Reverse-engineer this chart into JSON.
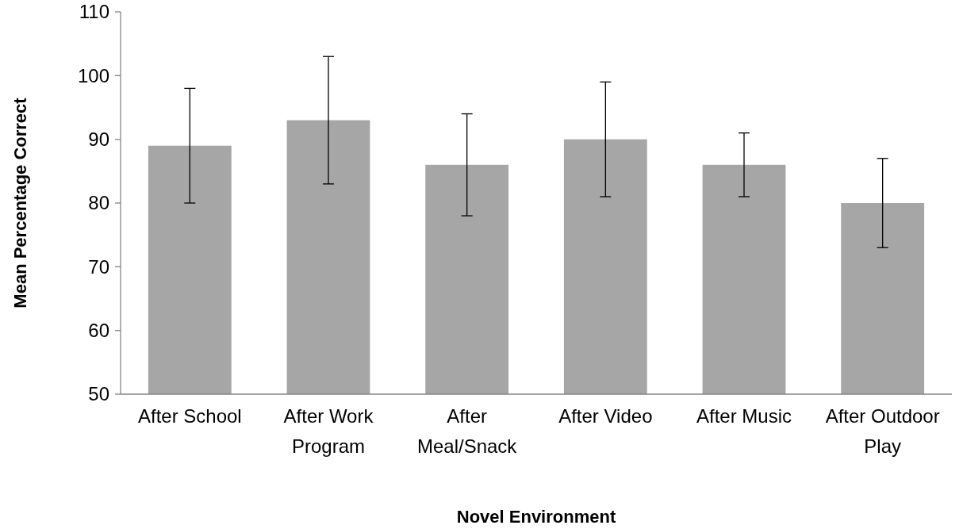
{
  "chart_data": {
    "type": "bar",
    "xlabel": "Novel Environment",
    "ylabel": "Mean Percentage Correct",
    "categories": [
      "After School",
      "After Work Program",
      "After Meal/Snack",
      "After Video",
      "After Music",
      "After Outdoor Play"
    ],
    "values": [
      89,
      93,
      86,
      90,
      86,
      80
    ],
    "errors": [
      9,
      10,
      8,
      9,
      5,
      7
    ],
    "color": "#a6a6a6",
    "ylim": [
      50,
      110
    ],
    "yticks": [
      50,
      60,
      70,
      80,
      90,
      100,
      110
    ],
    "grid": false
  }
}
